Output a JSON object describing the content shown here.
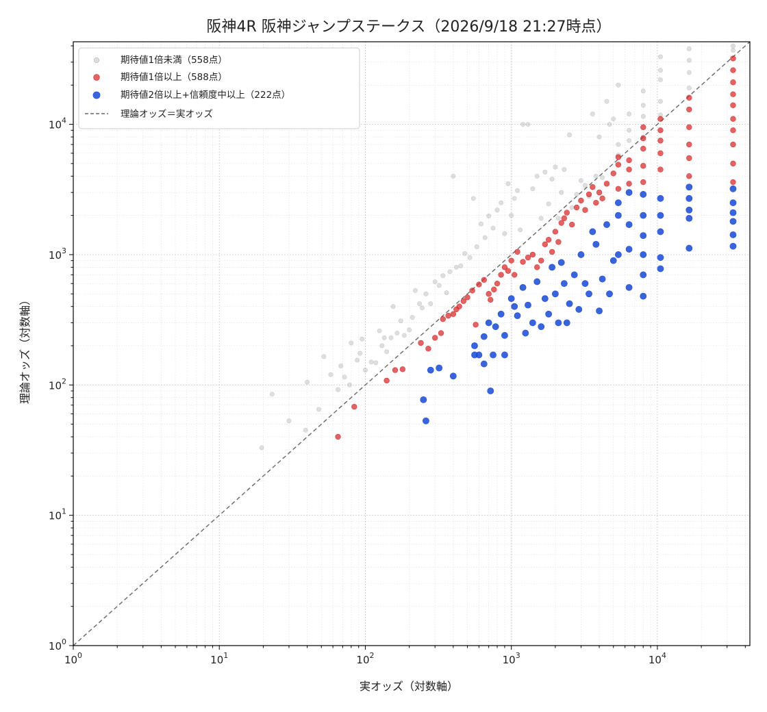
{
  "chart_data": {
    "type": "scatter",
    "title": "阪神4R 阪神ジャンプステークス（2026/9/18 21:27時点）",
    "xlabel": "実オッズ（対数軸）",
    "ylabel": "理論オッズ（対数軸）",
    "xscale": "log",
    "yscale": "log",
    "xlim": [
      1,
      43000
    ],
    "ylim": [
      1,
      43000
    ],
    "x_ticks": [
      {
        "base": "10",
        "exp": "0"
      },
      {
        "base": "10",
        "exp": "1"
      },
      {
        "base": "10",
        "exp": "2"
      },
      {
        "base": "10",
        "exp": "3"
      },
      {
        "base": "10",
        "exp": "4"
      }
    ],
    "y_ticks": [
      {
        "base": "10",
        "exp": "0"
      },
      {
        "base": "10",
        "exp": "1"
      },
      {
        "base": "10",
        "exp": "2"
      },
      {
        "base": "10",
        "exp": "3"
      },
      {
        "base": "10",
        "exp": "4"
      }
    ],
    "grid": true,
    "legend_position": "top-left",
    "series": [
      {
        "name": "期待値1倍未満（558点）",
        "color": "#b0b0b0",
        "points": [
          [
            19.5,
            33
          ],
          [
            23,
            85
          ],
          [
            30,
            53
          ],
          [
            39,
            45
          ],
          [
            40,
            105
          ],
          [
            48,
            65
          ],
          [
            52,
            165
          ],
          [
            58,
            120
          ],
          [
            65,
            92
          ],
          [
            68,
            140
          ],
          [
            72,
            115
          ],
          [
            78,
            100
          ],
          [
            80,
            210
          ],
          [
            88,
            155
          ],
          [
            92,
            175
          ],
          [
            95,
            225
          ],
          [
            100,
            130
          ],
          [
            110,
            150
          ],
          [
            118,
            148
          ],
          [
            125,
            260
          ],
          [
            130,
            200
          ],
          [
            135,
            230
          ],
          [
            140,
            180
          ],
          [
            150,
            230
          ],
          [
            155,
            400
          ],
          [
            165,
            250
          ],
          [
            175,
            310
          ],
          [
            185,
            240
          ],
          [
            200,
            265
          ],
          [
            210,
            330
          ],
          [
            220,
            530
          ],
          [
            235,
            420
          ],
          [
            245,
            390
          ],
          [
            260,
            500
          ],
          [
            280,
            420
          ],
          [
            300,
            620
          ],
          [
            320,
            580
          ],
          [
            340,
            690
          ],
          [
            360,
            510
          ],
          [
            380,
            740
          ],
          [
            400,
            4000
          ],
          [
            420,
            800
          ],
          [
            450,
            820
          ],
          [
            480,
            1020
          ],
          [
            520,
            950
          ],
          [
            550,
            2700
          ],
          [
            580,
            1150
          ],
          [
            620,
            1720
          ],
          [
            660,
            1350
          ],
          [
            700,
            1980
          ],
          [
            750,
            1600
          ],
          [
            800,
            2200
          ],
          [
            850,
            2500
          ],
          [
            900,
            1450
          ],
          [
            950,
            3500
          ],
          [
            1000,
            2000
          ],
          [
            1050,
            2700
          ],
          [
            1100,
            3100
          ],
          [
            1150,
            1550
          ],
          [
            1200,
            10000
          ],
          [
            1300,
            10000
          ],
          [
            1400,
            3200
          ],
          [
            1500,
            4000
          ],
          [
            1600,
            1900
          ],
          [
            1700,
            4300
          ],
          [
            1800,
            2450
          ],
          [
            1900,
            3800
          ],
          [
            2000,
            4700
          ],
          [
            2100,
            1900
          ],
          [
            2200,
            3000
          ],
          [
            2300,
            4500
          ],
          [
            2500,
            8300
          ],
          [
            2600,
            2300
          ],
          [
            2800,
            2900
          ],
          [
            3000,
            3700
          ],
          [
            3200,
            3400
          ],
          [
            3400,
            2800
          ],
          [
            3600,
            12000
          ],
          [
            3800,
            4000
          ],
          [
            4000,
            8000
          ],
          [
            4200,
            3900
          ],
          [
            4500,
            15000
          ],
          [
            4700,
            10000
          ],
          [
            5000,
            11000
          ],
          [
            5400,
            7000
          ],
          [
            5400,
            5800
          ],
          [
            5400,
            20000
          ],
          [
            6400,
            7500
          ],
          [
            6400,
            9000
          ],
          [
            6400,
            12000
          ],
          [
            8000,
            8000
          ],
          [
            8000,
            11500
          ],
          [
            8000,
            14000
          ],
          [
            8000,
            18000
          ],
          [
            10500,
            11800
          ],
          [
            10500,
            15000
          ],
          [
            10500,
            22000
          ],
          [
            10500,
            26000
          ],
          [
            10500,
            33000
          ],
          [
            16500,
            19000
          ],
          [
            16500,
            25000
          ],
          [
            16500,
            31000
          ],
          [
            16500,
            38000
          ],
          [
            33000,
            37000
          ],
          [
            33000,
            40000
          ]
        ]
      },
      {
        "name": "期待値1倍以上（588点）",
        "color": "#d62728",
        "points": [
          [
            65,
            40
          ],
          [
            84,
            68
          ],
          [
            140,
            108
          ],
          [
            160,
            130
          ],
          [
            180,
            132
          ],
          [
            240,
            210
          ],
          [
            270,
            190
          ],
          [
            300,
            230
          ],
          [
            330,
            250
          ],
          [
            340,
            320
          ],
          [
            370,
            340
          ],
          [
            400,
            350
          ],
          [
            420,
            380
          ],
          [
            440,
            400
          ],
          [
            470,
            440
          ],
          [
            500,
            470
          ],
          [
            540,
            530
          ],
          [
            570,
            290
          ],
          [
            600,
            590
          ],
          [
            650,
            640
          ],
          [
            700,
            500
          ],
          [
            720,
            450
          ],
          [
            760,
            540
          ],
          [
            800,
            600
          ],
          [
            850,
            700
          ],
          [
            900,
            800
          ],
          [
            950,
            750
          ],
          [
            1000,
            900
          ],
          [
            1050,
            700
          ],
          [
            1100,
            1050
          ],
          [
            1200,
            880
          ],
          [
            1300,
            950
          ],
          [
            1400,
            1000
          ],
          [
            1500,
            800
          ],
          [
            1600,
            900
          ],
          [
            1700,
            1200
          ],
          [
            1800,
            1300
          ],
          [
            1900,
            1050
          ],
          [
            2000,
            1500
          ],
          [
            2100,
            1250
          ],
          [
            2200,
            1750
          ],
          [
            2300,
            1900
          ],
          [
            2400,
            2100
          ],
          [
            2600,
            1700
          ],
          [
            2800,
            2300
          ],
          [
            3000,
            2600
          ],
          [
            3200,
            2200
          ],
          [
            3400,
            2900
          ],
          [
            3600,
            3300
          ],
          [
            3800,
            2500
          ],
          [
            4000,
            3000
          ],
          [
            4200,
            2700
          ],
          [
            4500,
            3500
          ],
          [
            5000,
            4200
          ],
          [
            5400,
            3200
          ],
          [
            5400,
            4900
          ],
          [
            5400,
            5600
          ],
          [
            6400,
            3500
          ],
          [
            6400,
            4500
          ],
          [
            6400,
            5300
          ],
          [
            8000,
            3600
          ],
          [
            8000,
            4800
          ],
          [
            8000,
            6500
          ],
          [
            8000,
            7800
          ],
          [
            8000,
            9500
          ],
          [
            10500,
            4500
          ],
          [
            10500,
            6000
          ],
          [
            10500,
            7500
          ],
          [
            10500,
            9000
          ],
          [
            10500,
            11000
          ],
          [
            16500,
            4000
          ],
          [
            16500,
            5500
          ],
          [
            16500,
            7000
          ],
          [
            16500,
            9500
          ],
          [
            16500,
            13000
          ],
          [
            16500,
            16000
          ],
          [
            33000,
            3600
          ],
          [
            33000,
            5000
          ],
          [
            33000,
            7000
          ],
          [
            33000,
            9000
          ],
          [
            33000,
            11000
          ],
          [
            33000,
            14000
          ],
          [
            33000,
            17000
          ],
          [
            33000,
            21000
          ],
          [
            33000,
            26000
          ],
          [
            33000,
            32000
          ]
        ]
      },
      {
        "name": "期待値2倍以上+信頼度中以上（222点）",
        "color": "#1f4fd6",
        "points": [
          [
            250,
            77
          ],
          [
            260,
            53
          ],
          [
            280,
            130
          ],
          [
            320,
            135
          ],
          [
            400,
            117
          ],
          [
            560,
            170
          ],
          [
            560,
            200
          ],
          [
            600,
            170
          ],
          [
            650,
            235
          ],
          [
            650,
            145
          ],
          [
            700,
            300
          ],
          [
            720,
            90
          ],
          [
            750,
            170
          ],
          [
            780,
            280
          ],
          [
            850,
            350
          ],
          [
            900,
            240
          ],
          [
            900,
            170
          ],
          [
            1000,
            460
          ],
          [
            1050,
            400
          ],
          [
            1100,
            340
          ],
          [
            1200,
            560
          ],
          [
            1250,
            250
          ],
          [
            1300,
            410
          ],
          [
            1400,
            300
          ],
          [
            1500,
            620
          ],
          [
            1600,
            280
          ],
          [
            1700,
            460
          ],
          [
            1800,
            350
          ],
          [
            1900,
            800
          ],
          [
            2000,
            500
          ],
          [
            2100,
            300
          ],
          [
            2200,
            870
          ],
          [
            2300,
            600
          ],
          [
            2400,
            300
          ],
          [
            2500,
            420
          ],
          [
            2700,
            700
          ],
          [
            2900,
            380
          ],
          [
            3000,
            1000
          ],
          [
            3200,
            600
          ],
          [
            3400,
            500
          ],
          [
            3600,
            1500
          ],
          [
            3800,
            1200
          ],
          [
            4000,
            370
          ],
          [
            4200,
            650
          ],
          [
            4500,
            1700
          ],
          [
            4700,
            500
          ],
          [
            5000,
            900
          ],
          [
            5400,
            1000
          ],
          [
            5400,
            2000
          ],
          [
            5400,
            2500
          ],
          [
            6400,
            560
          ],
          [
            6400,
            1100
          ],
          [
            6400,
            1700
          ],
          [
            6400,
            3000
          ],
          [
            8000,
            480
          ],
          [
            8000,
            700
          ],
          [
            8000,
            1000
          ],
          [
            8000,
            1400
          ],
          [
            8000,
            2000
          ],
          [
            8000,
            2900
          ],
          [
            10500,
            780
          ],
          [
            10500,
            950
          ],
          [
            10500,
            1500
          ],
          [
            10500,
            2000
          ],
          [
            10500,
            2700
          ],
          [
            16500,
            1120
          ],
          [
            16500,
            1900
          ],
          [
            16500,
            2200
          ],
          [
            16500,
            2700
          ],
          [
            16500,
            3300
          ],
          [
            33000,
            1160
          ],
          [
            33000,
            1420
          ],
          [
            33000,
            1800
          ],
          [
            33000,
            2100
          ],
          [
            33000,
            2500
          ],
          [
            33000,
            3200
          ]
        ]
      }
    ],
    "reference_line": {
      "name": "理論オッズ＝実オッズ",
      "color": "#666666",
      "style": "dashed"
    }
  }
}
